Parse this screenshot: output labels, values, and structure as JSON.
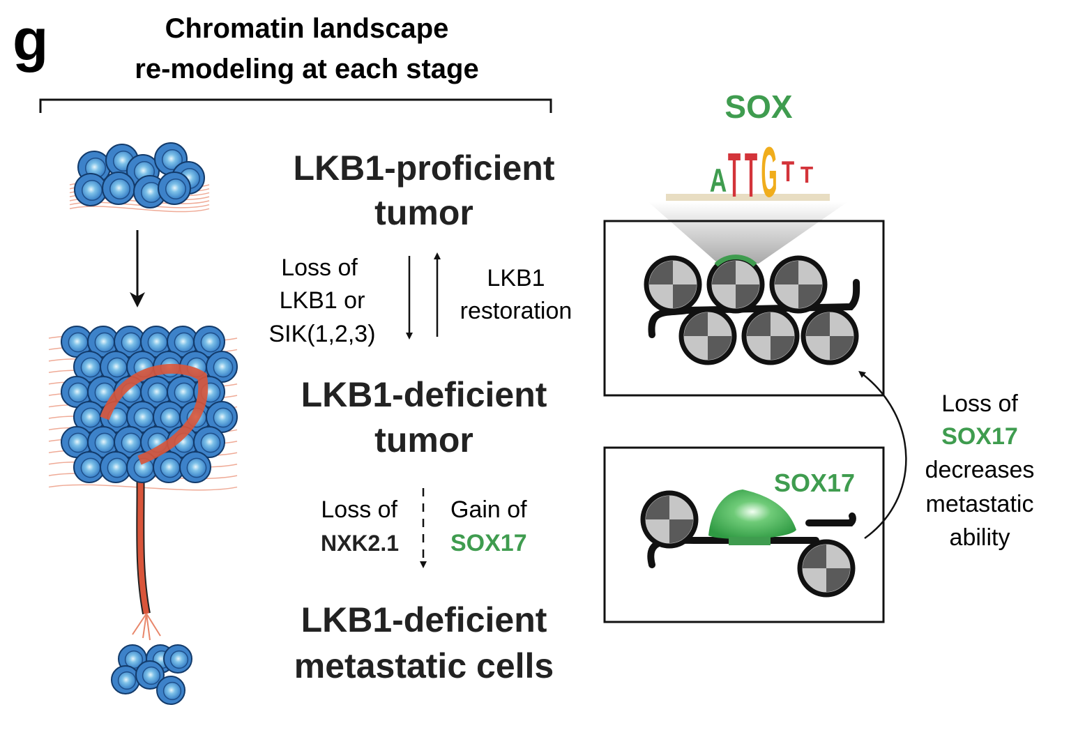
{
  "panel_label": "g",
  "header": {
    "title_lines": [
      "Chromatin landscape",
      "re-modeling at each stage"
    ]
  },
  "stages": [
    {
      "lines": [
        "LKB1-proficient",
        "tumor"
      ]
    },
    {
      "lines": [
        "LKB1-deficient",
        "tumor"
      ]
    },
    {
      "lines": [
        "LKB1-deficient",
        "metastatic cells"
      ]
    }
  ],
  "transitions": {
    "loss": [
      "Loss of",
      "LKB1 or",
      "SIK(1,2,3)"
    ],
    "restoration": [
      "LKB1",
      "restoration"
    ],
    "loss_nkx": [
      "Loss of",
      "NXK2.1"
    ],
    "gain_sox": [
      "Gain of",
      "SOX17"
    ]
  },
  "motif": {
    "label": "SOX",
    "letters": [
      "A",
      "T",
      "T",
      "G",
      "T",
      "T"
    ]
  },
  "box2_label": "SOX17",
  "side_note": [
    "Loss of",
    "SOX17",
    "decreases",
    "metastatic",
    "ability"
  ]
}
